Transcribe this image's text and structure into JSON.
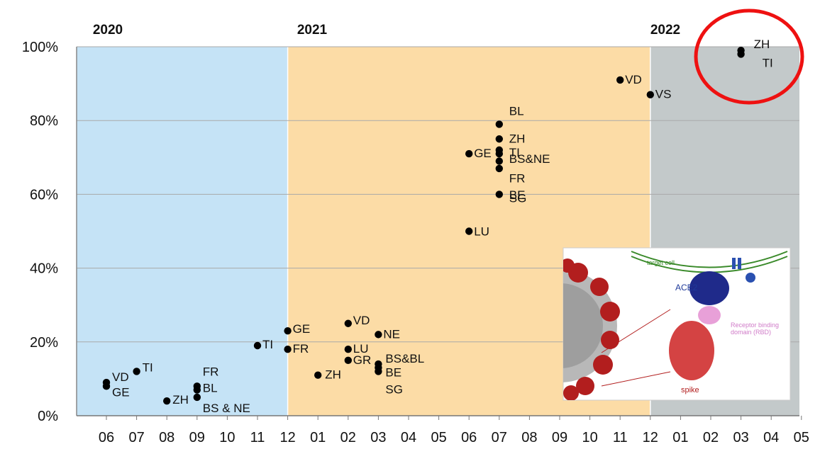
{
  "chart_data": {
    "type": "scatter",
    "title": "",
    "xlabel": "",
    "ylabel": "",
    "ylim": [
      0,
      100
    ],
    "y_ticks": [
      "0%",
      "20%",
      "40%",
      "60%",
      "80%",
      "100%"
    ],
    "x_ticks": [
      "06",
      "07",
      "08",
      "09",
      "10",
      "11",
      "12",
      "01",
      "02",
      "03",
      "04",
      "05",
      "06",
      "07",
      "08",
      "09",
      "10",
      "11",
      "12",
      "01",
      "02",
      "03",
      "04",
      "05"
    ],
    "years": [
      "2020",
      "2021",
      "2022"
    ],
    "grid": true,
    "period_colors": [
      "#c5e3f6",
      "#fcdca6",
      "#c3c9ca"
    ],
    "series": [
      {
        "points": [
          {
            "x": "2020-06",
            "y": 9,
            "label": "VD"
          },
          {
            "x": "2020-06",
            "y": 8,
            "label": "GE"
          },
          {
            "x": "2020-07",
            "y": 12,
            "label": "TI"
          },
          {
            "x": "2020-08",
            "y": 4,
            "label": "ZH"
          },
          {
            "x": "2020-09",
            "y": 8,
            "label": "FR"
          },
          {
            "x": "2020-09",
            "y": 7,
            "label": "BL"
          },
          {
            "x": "2020-09",
            "y": 5,
            "label": "BS & NE"
          },
          {
            "x": "2020-11",
            "y": 19,
            "label": "TI"
          },
          {
            "x": "2020-12",
            "y": 23,
            "label": "GE"
          },
          {
            "x": "2020-12",
            "y": 18,
            "label": "FR"
          },
          {
            "x": "2021-01",
            "y": 11,
            "label": "ZH"
          },
          {
            "x": "2021-02",
            "y": 25,
            "label": "VD"
          },
          {
            "x": "2021-02",
            "y": 18,
            "label": "LU"
          },
          {
            "x": "2021-02",
            "y": 15,
            "label": "GR"
          },
          {
            "x": "2021-03",
            "y": 22,
            "label": "NE"
          },
          {
            "x": "2021-03",
            "y": 14,
            "label": "BS&BL"
          },
          {
            "x": "2021-03",
            "y": 13,
            "label": "BE"
          },
          {
            "x": "2021-03",
            "y": 12,
            "label": "SG"
          },
          {
            "x": "2021-06",
            "y": 71,
            "label": "GE"
          },
          {
            "x": "2021-06",
            "y": 50,
            "label": "LU"
          },
          {
            "x": "2021-07",
            "y": 79,
            "label": "BL"
          },
          {
            "x": "2021-07",
            "y": 75,
            "label": "ZH"
          },
          {
            "x": "2021-07",
            "y": 72,
            "label": "TI"
          },
          {
            "x": "2021-07",
            "y": 71,
            "label": "BS&NE"
          },
          {
            "x": "2021-07",
            "y": 69,
            "label": "FR"
          },
          {
            "x": "2021-07",
            "y": 67,
            "label": "BE"
          },
          {
            "x": "2021-07",
            "y": 60,
            "label": "SG"
          },
          {
            "x": "2021-11",
            "y": 91,
            "label": "VD"
          },
          {
            "x": "2021-12",
            "y": 87,
            "label": "VS"
          },
          {
            "x": "2022-03",
            "y": 99,
            "label": "ZH"
          },
          {
            "x": "2022-03",
            "y": 98,
            "label": "TI"
          }
        ]
      }
    ],
    "annotations": [
      {
        "type": "circle",
        "color": "#ee1111",
        "around": [
          "ZH",
          "TI"
        ],
        "date": "2022-03"
      }
    ]
  },
  "inset": {
    "target_cell": "target cell",
    "ace2": "ACE2",
    "rbd_line1": "Receptor binding",
    "rbd_line2": "domain (RBD)",
    "spike": "spike"
  }
}
